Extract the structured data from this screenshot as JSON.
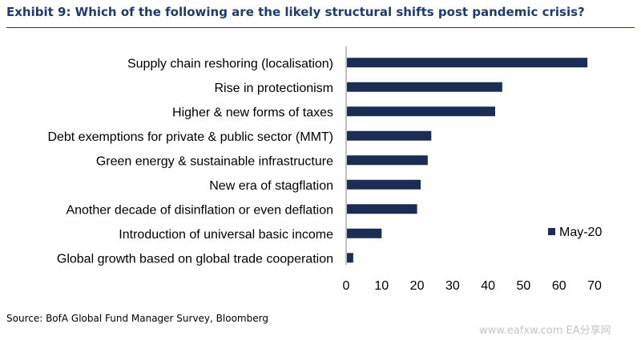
{
  "header": {
    "title": "Exhibit 9: Which of the following are the likely structural shifts post pandemic crisis?"
  },
  "footer": {
    "source": "Source: BofA Global Fund Manager Survey, Bloomberg",
    "watermark": "www.eafxw.com  EA分享网"
  },
  "colors": {
    "bar": "#1c2d54",
    "title": "#1f3b6e",
    "axis": "#808080"
  },
  "chart_data": {
    "type": "bar",
    "orientation": "horizontal",
    "categories": [
      "Supply chain reshoring (localisation)",
      "Rise in protectionism",
      "Higher & new forms of taxes",
      "Debt exemptions for private & public sector (MMT)",
      "Green energy & sustainable infrastructure",
      "New era of stagflation",
      "Another decade of disinflation or even deflation",
      "Introduction of universal basic income",
      "Global growth based on global trade cooperation"
    ],
    "series": [
      {
        "name": "May-20",
        "values": [
          68,
          44,
          42,
          24,
          23,
          21,
          20,
          10,
          2
        ]
      }
    ],
    "xlim": [
      0,
      70
    ],
    "xticks": [
      0,
      10,
      20,
      30,
      40,
      50,
      60,
      70
    ],
    "grid": false,
    "legend": "right"
  }
}
